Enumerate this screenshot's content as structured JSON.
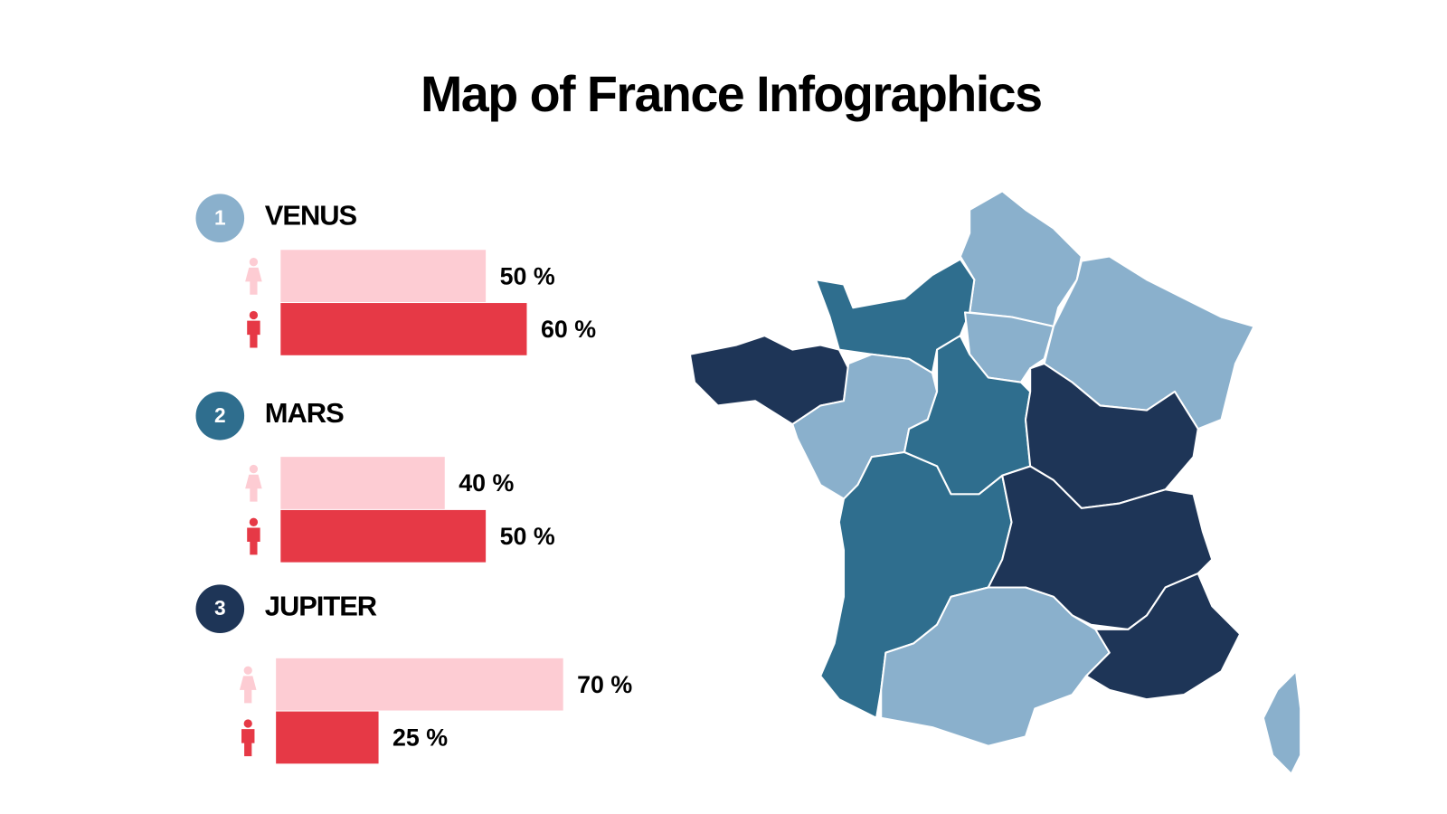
{
  "title": "Map of France Infographics",
  "groups": [
    {
      "number": "1",
      "name": "VENUS",
      "color": "#8ab0cc",
      "values": [
        50,
        60
      ],
      "value_labels": [
        "50 %",
        "60 %"
      ]
    },
    {
      "number": "2",
      "name": "MARS",
      "color": "#2f6e8e",
      "values": [
        40,
        50
      ],
      "value_labels": [
        "40 %",
        "50 %"
      ]
    },
    {
      "number": "3",
      "name": "JUPITER",
      "color": "#1e3557",
      "values": [
        70,
        25
      ],
      "value_labels": [
        "70 %",
        "25 %"
      ]
    }
  ]
}
